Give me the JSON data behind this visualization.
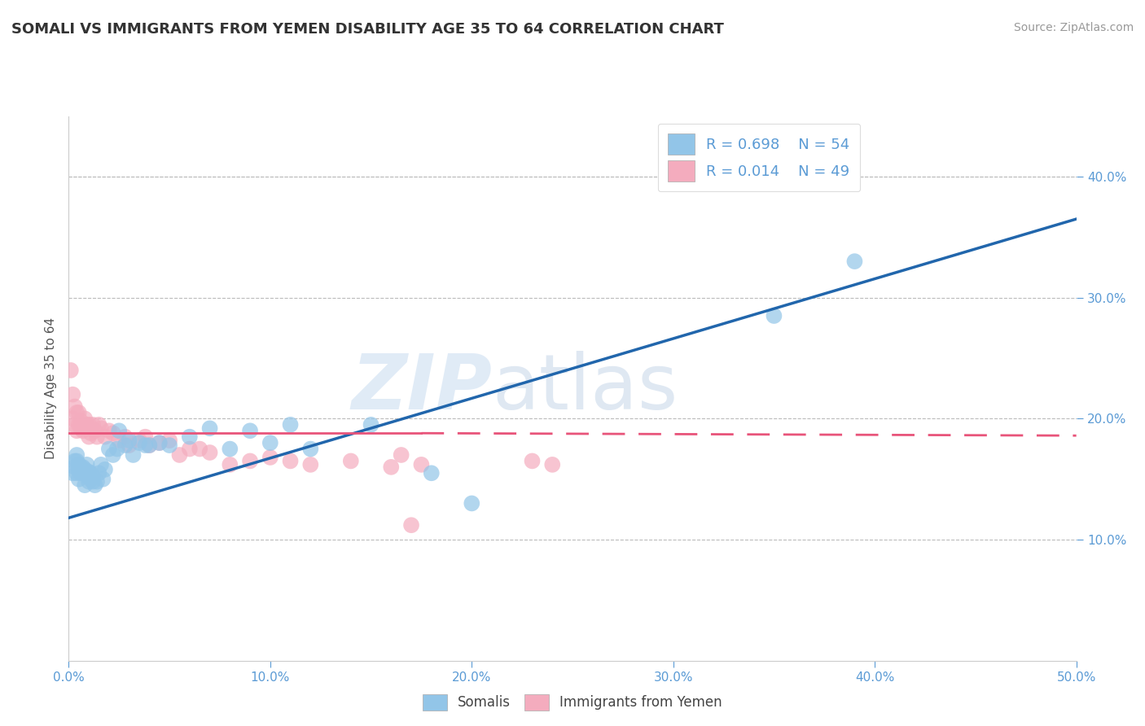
{
  "title": "SOMALI VS IMMIGRANTS FROM YEMEN DISABILITY AGE 35 TO 64 CORRELATION CHART",
  "source": "Source: ZipAtlas.com",
  "ylabel": "Disability Age 35 to 64",
  "xlim": [
    0.0,
    0.5
  ],
  "ylim": [
    0.0,
    0.45
  ],
  "xtick_vals": [
    0.0,
    0.1,
    0.2,
    0.3,
    0.4,
    0.5
  ],
  "ytick_vals": [
    0.1,
    0.2,
    0.3,
    0.4
  ],
  "watermark_zip": "ZIP",
  "watermark_atlas": "atlas",
  "legend_r1": "R = 0.698",
  "legend_n1": "N = 54",
  "legend_r2": "R = 0.014",
  "legend_n2": "N = 49",
  "somali_color": "#92C5E8",
  "yemen_color": "#F4ACBE",
  "somali_line_color": "#2166AC",
  "yemen_line_color": "#E8547A",
  "legend_label1": "Somalis",
  "legend_label2": "Immigrants from Yemen",
  "background_color": "#FFFFFF",
  "grid_color": "#CCCCCC",
  "title_color": "#333333",
  "axis_color": "#5B9BD5",
  "somali_x": [
    0.002,
    0.003,
    0.003,
    0.004,
    0.004,
    0.004,
    0.005,
    0.005,
    0.005,
    0.006,
    0.006,
    0.007,
    0.007,
    0.008,
    0.008,
    0.009,
    0.009,
    0.01,
    0.01,
    0.01,
    0.011,
    0.011,
    0.012,
    0.012,
    0.013,
    0.014,
    0.015,
    0.016,
    0.017,
    0.018,
    0.02,
    0.022,
    0.024,
    0.025,
    0.028,
    0.03,
    0.032,
    0.035,
    0.038,
    0.04,
    0.045,
    0.05,
    0.06,
    0.07,
    0.08,
    0.09,
    0.1,
    0.11,
    0.12,
    0.15,
    0.18,
    0.2,
    0.35,
    0.39
  ],
  "somali_y": [
    0.155,
    0.16,
    0.165,
    0.155,
    0.165,
    0.17,
    0.15,
    0.158,
    0.162,
    0.155,
    0.16,
    0.155,
    0.16,
    0.145,
    0.158,
    0.155,
    0.162,
    0.148,
    0.152,
    0.156,
    0.15,
    0.155,
    0.148,
    0.152,
    0.145,
    0.148,
    0.155,
    0.162,
    0.15,
    0.158,
    0.175,
    0.17,
    0.175,
    0.19,
    0.178,
    0.182,
    0.17,
    0.18,
    0.178,
    0.178,
    0.18,
    0.178,
    0.185,
    0.192,
    0.175,
    0.19,
    0.18,
    0.195,
    0.175,
    0.195,
    0.155,
    0.13,
    0.285,
    0.33
  ],
  "yemen_x": [
    0.001,
    0.002,
    0.002,
    0.003,
    0.003,
    0.004,
    0.004,
    0.005,
    0.005,
    0.006,
    0.006,
    0.007,
    0.008,
    0.009,
    0.01,
    0.01,
    0.011,
    0.012,
    0.013,
    0.014,
    0.015,
    0.016,
    0.018,
    0.02,
    0.022,
    0.025,
    0.028,
    0.03,
    0.035,
    0.038,
    0.04,
    0.045,
    0.05,
    0.055,
    0.06,
    0.065,
    0.07,
    0.08,
    0.09,
    0.1,
    0.11,
    0.12,
    0.14,
    0.16,
    0.165,
    0.17,
    0.175,
    0.23,
    0.24
  ],
  "yemen_y": [
    0.24,
    0.2,
    0.22,
    0.195,
    0.21,
    0.19,
    0.205,
    0.195,
    0.205,
    0.192,
    0.198,
    0.19,
    0.2,
    0.195,
    0.185,
    0.195,
    0.188,
    0.195,
    0.19,
    0.185,
    0.195,
    0.192,
    0.185,
    0.19,
    0.188,
    0.182,
    0.185,
    0.178,
    0.182,
    0.185,
    0.178,
    0.18,
    0.182,
    0.17,
    0.175,
    0.175,
    0.172,
    0.162,
    0.165,
    0.168,
    0.165,
    0.162,
    0.165,
    0.16,
    0.17,
    0.112,
    0.162,
    0.165,
    0.162
  ],
  "blue_line_x0": 0.0,
  "blue_line_y0": 0.118,
  "blue_line_x1": 0.5,
  "blue_line_y1": 0.365,
  "pink_line_x0": 0.0,
  "pink_line_y0": 0.188,
  "pink_line_x1_solid": 0.175,
  "pink_line_y1_solid": 0.188,
  "pink_line_x1_dash": 0.5,
  "pink_line_y1_dash": 0.186
}
